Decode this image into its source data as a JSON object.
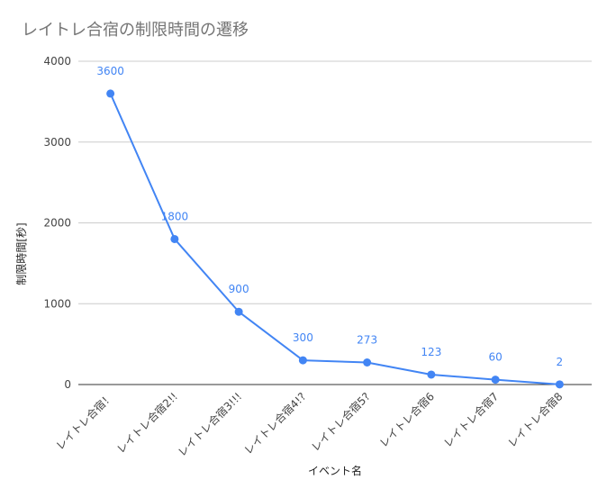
{
  "chart_data": {
    "type": "line",
    "title": "レイトレ合宿の制限時間の遷移",
    "xlabel": "イベント名",
    "ylabel": "制限時間[秒]",
    "categories": [
      "レイトレ合宿！",
      "レイトレ合宿2!!",
      "レイトレ合宿3!!!",
      "レイトレ合宿4!?",
      "レイトレ合宿5?",
      "レイトレ合宿6",
      "レイトレ合宿7",
      "レイトレ合宿8"
    ],
    "series": [
      {
        "values": [
          3600,
          1800,
          900,
          300,
          273,
          123,
          60,
          2
        ],
        "data_labels": [
          "3600",
          "1800",
          "900",
          "300",
          "273",
          "123",
          "60",
          "2"
        ],
        "color": "#4285f4"
      }
    ],
    "ylim": [
      0,
      4000
    ],
    "yticks": [
      "0",
      "1000",
      "2000",
      "3000",
      "4000"
    ],
    "ytick_values": [
      0,
      1000,
      2000,
      3000,
      4000
    ],
    "grid": true,
    "legend": "none"
  }
}
